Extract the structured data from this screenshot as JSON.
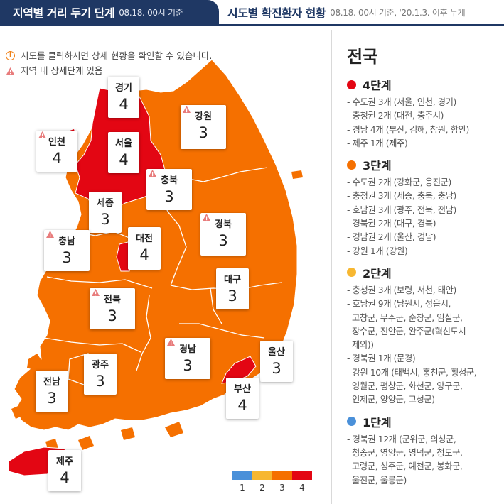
{
  "tabs": {
    "active": {
      "title": "지역별 거리 두기 단계",
      "sub": "08.18. 00시 기준"
    },
    "inactive": {
      "title": "시도별 확진환자 현황",
      "sub": "08.18. 00시 기준, '20.1.3. 이후 누계"
    }
  },
  "notes": {
    "info_icon": "info-icon",
    "info": "시도를 클릭하시면 상세 현황을 확인할 수 있습니다.",
    "warn_icon": "warning-triangle-icon",
    "warn": "지역 내 상세단계 있음"
  },
  "colors": {
    "level1": "#4a90d9",
    "level2": "#f7b731",
    "level3": "#f57000",
    "level4": "#e30613"
  },
  "regions": [
    {
      "id": "gyeonggi",
      "name": "경기",
      "level": "4",
      "warn": false
    },
    {
      "id": "incheon",
      "name": "인천",
      "level": "4",
      "warn": true
    },
    {
      "id": "seoul",
      "name": "서울",
      "level": "4",
      "warn": false
    },
    {
      "id": "gangwon",
      "name": "강원",
      "level": "3",
      "warn": true
    },
    {
      "id": "chungbuk",
      "name": "충북",
      "level": "3",
      "warn": true
    },
    {
      "id": "sejong",
      "name": "세종",
      "level": "3",
      "warn": false
    },
    {
      "id": "chungnam",
      "name": "충남",
      "level": "3",
      "warn": true
    },
    {
      "id": "daejeon",
      "name": "대전",
      "level": "4",
      "warn": false
    },
    {
      "id": "gyeongbuk",
      "name": "경북",
      "level": "3",
      "warn": true
    },
    {
      "id": "daegu",
      "name": "대구",
      "level": "3",
      "warn": false
    },
    {
      "id": "jeonbuk",
      "name": "전북",
      "level": "3",
      "warn": true
    },
    {
      "id": "gwangju",
      "name": "광주",
      "level": "3",
      "warn": false
    },
    {
      "id": "gyeongnam",
      "name": "경남",
      "level": "3",
      "warn": true
    },
    {
      "id": "ulsan",
      "name": "울산",
      "level": "3",
      "warn": false
    },
    {
      "id": "jeonnam",
      "name": "전남",
      "level": "3",
      "warn": false
    },
    {
      "id": "busan",
      "name": "부산",
      "level": "4",
      "warn": false
    },
    {
      "id": "jeju",
      "name": "제주",
      "level": "4",
      "warn": false
    }
  ],
  "legend": [
    "1",
    "2",
    "3",
    "4"
  ],
  "panel": {
    "title": "전국",
    "levels": [
      {
        "label": "4단계",
        "color": "#e30613",
        "items": [
          "- 수도권 3개 (서울, 인천, 경기)",
          "- 충청권 2개 (대전, 충주시)",
          "- 경남 4개 (부산, 김해, 창원, 함안)",
          "- 제주 1개 (제주)"
        ]
      },
      {
        "label": "3단계",
        "color": "#f57000",
        "items": [
          "- 수도권 2개 (강화군, 옹진군)",
          "- 충청권 3개 (세종, 충북, 충남)",
          "- 호남권 3개 (광주, 전북, 전남)",
          "- 경북권 2개 (대구, 경북)",
          "- 경남권 2개 (울산, 경남)",
          "- 강원 1개 (강원)"
        ]
      },
      {
        "label": "2단계",
        "color": "#f7b731",
        "items": [
          "- 충청권 3개 (보령, 서천, 태안)",
          "- 호남권 9개 (남원시, 정읍시,",
          "  고창군, 무주군, 순창군, 임실군,",
          "  장수군, 진안군, 완주군(혁신도시",
          "  제외))",
          "- 경북권 1개 (문경)",
          "- 강원 10개 (태백시, 홍천군, 횡성군,",
          "  영월군, 평창군, 화천군, 양구군,",
          "  인제군, 양양군, 고성군)"
        ]
      },
      {
        "label": "1단계",
        "color": "#4a90d9",
        "items": [
          "- 경북권 12개 (군위군, 의성군,",
          "  청송군, 영양군, 영덕군, 청도군,",
          "  고령군, 성주군, 예천군, 봉화군,",
          "  울진군, 울릉군)"
        ]
      }
    ]
  }
}
